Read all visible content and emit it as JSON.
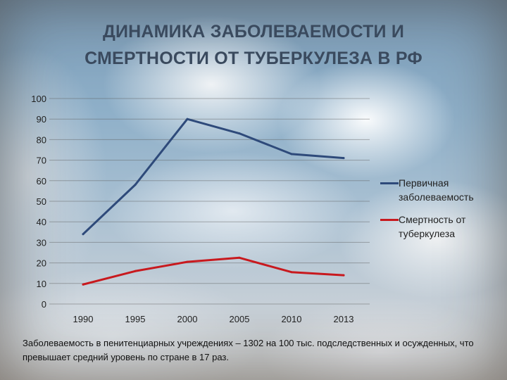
{
  "slide": {
    "title_line1": "ДИНАМИКА ЗАБОЛЕВАЕМОСТИ И",
    "title_line2": "СМЕРТНОСТИ ОТ ТУБЕРКУЛЕЗА В РФ",
    "footnote": "Заболеваемость в пенитенциарных учреждениях – 1302 на 100 тыс. подследственных и осужденных, что превышает средний уровень по стране в 17 раз."
  },
  "chart_data": {
    "type": "line",
    "title": "",
    "xlabel": "",
    "ylabel": "",
    "categories": [
      "1990",
      "1995",
      "2000",
      "2005",
      "2010",
      "2013"
    ],
    "yticks": [
      0,
      10,
      20,
      30,
      40,
      50,
      60,
      70,
      80,
      90,
      100
    ],
    "ylim": [
      0,
      100
    ],
    "grid": true,
    "legend_position": "right",
    "series": [
      {
        "name": "Первичная заболеваемость",
        "name_lines": [
          "Первичная",
          "заболеваемость"
        ],
        "color": "#2e4a7a",
        "values": [
          34,
          58,
          90,
          83,
          73,
          71
        ]
      },
      {
        "name": "Смертность от туберкулеза",
        "name_lines": [
          "Смертность от",
          "туберкулеза"
        ],
        "color": "#c8191e",
        "values": [
          9.5,
          16,
          20.5,
          22.5,
          15.5,
          14
        ]
      }
    ]
  }
}
